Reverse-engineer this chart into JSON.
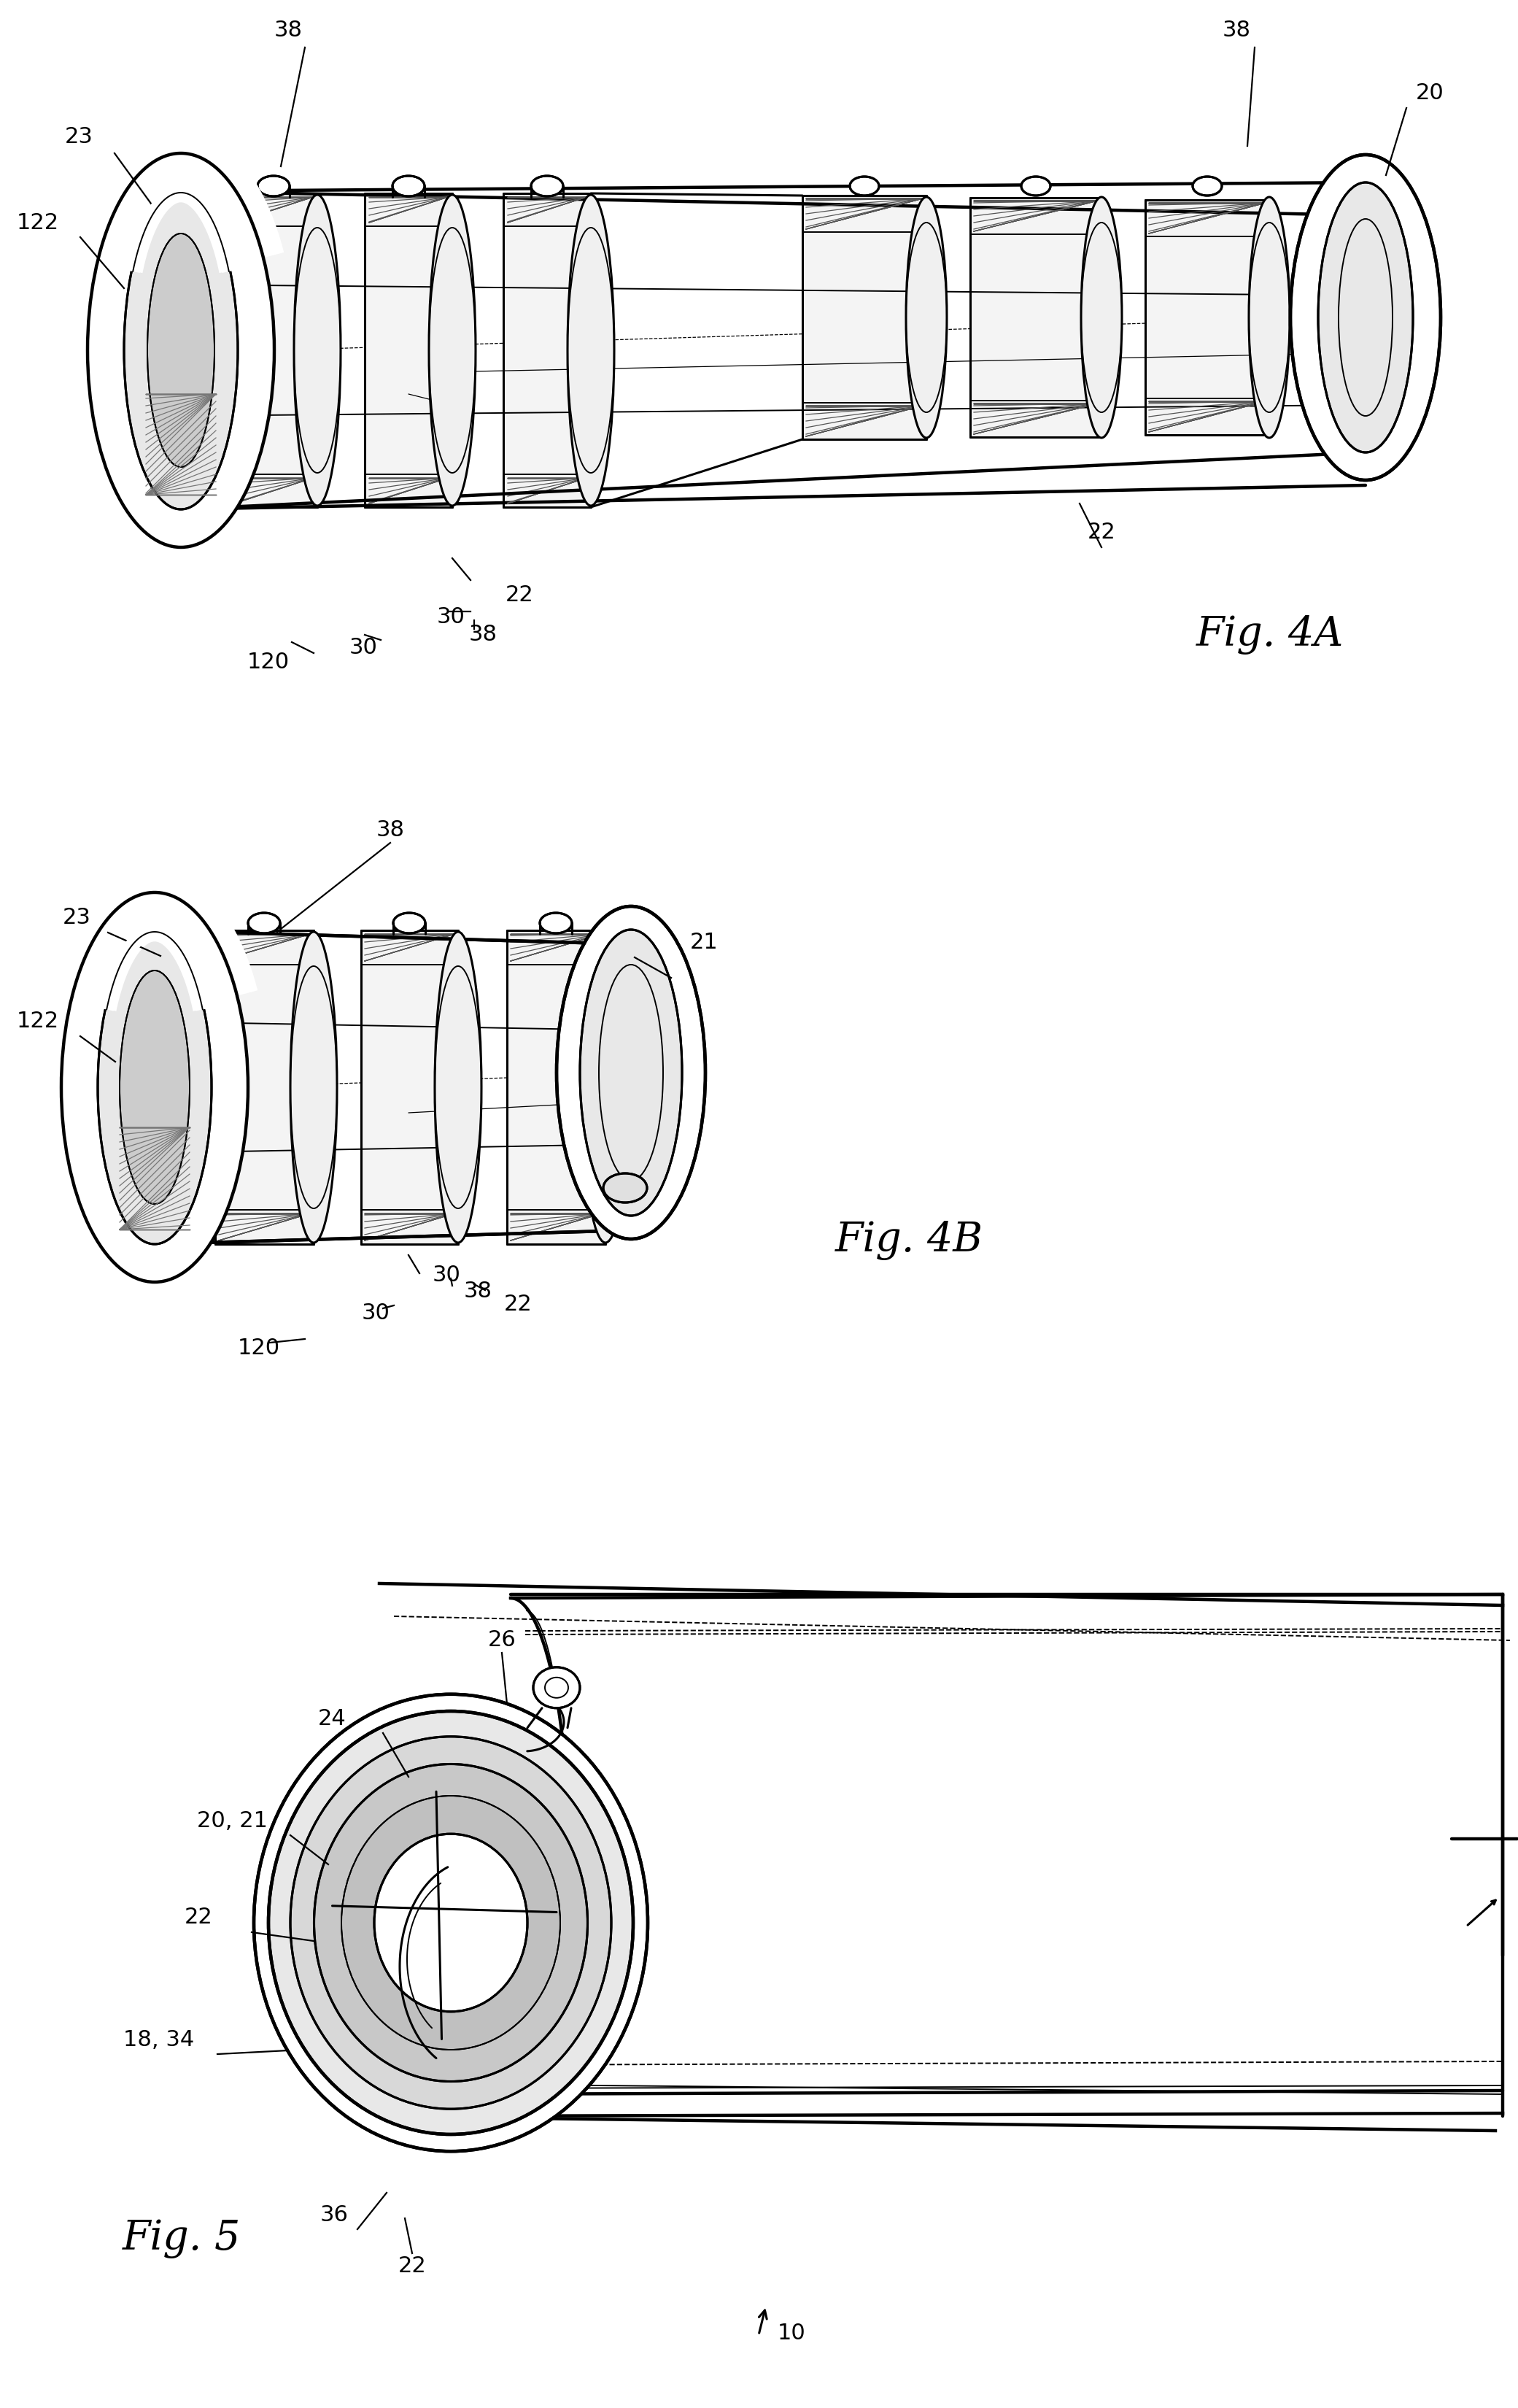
{
  "bg": "#ffffff",
  "lc": "#000000",
  "fig4a_label": "Fig. 4A",
  "fig4b_label": "Fig. 4B",
  "fig5_label": "Fig. 5",
  "annotations_4a": [
    [
      "38",
      395,
      42
    ],
    [
      "38",
      1695,
      42
    ],
    [
      "23",
      108,
      188
    ],
    [
      "20",
      1960,
      128
    ],
    [
      "122",
      52,
      305
    ],
    [
      "22",
      1510,
      730
    ],
    [
      "22",
      712,
      816
    ],
    [
      "30",
      618,
      846
    ],
    [
      "38",
      662,
      870
    ],
    [
      "30",
      498,
      887
    ],
    [
      "120",
      368,
      907
    ]
  ],
  "annotations_4b": [
    [
      "38",
      535,
      1138
    ],
    [
      "23",
      105,
      1258
    ],
    [
      "21",
      965,
      1292
    ],
    [
      "122",
      52,
      1400
    ],
    [
      "30",
      612,
      1748
    ],
    [
      "38",
      655,
      1770
    ],
    [
      "22",
      710,
      1787
    ],
    [
      "30",
      515,
      1800
    ],
    [
      "120",
      355,
      1848
    ]
  ],
  "annotations_5": [
    [
      "26",
      688,
      2248
    ],
    [
      "24",
      455,
      2355
    ],
    [
      "20, 21",
      318,
      2495
    ],
    [
      "22",
      272,
      2628
    ],
    [
      "18, 34",
      218,
      2795
    ],
    [
      "36",
      458,
      3035
    ],
    [
      "22",
      565,
      3105
    ],
    [
      "10",
      1085,
      3198
    ]
  ]
}
